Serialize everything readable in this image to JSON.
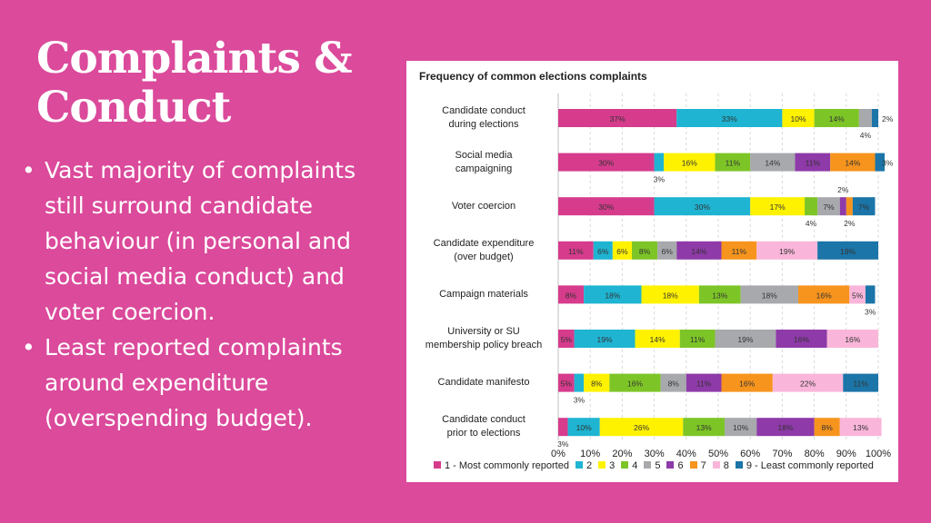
{
  "slide": {
    "title_line1": "Complaints &",
    "title_line2": "Conduct",
    "bullets": [
      {
        "symbol": "•",
        "lines": [
          "Vast majority of complaints",
          "still surround candidate",
          "behaviour (in personal and",
          "social media conduct) and",
          "voter coercion."
        ]
      },
      {
        "symbol": "•",
        "lines": [
          "Least reported complaints",
          "around expenditure",
          "(overspending budget)."
        ]
      }
    ]
  },
  "chart_data": {
    "type": "bar",
    "orientation": "horizontal",
    "stacked": "100%",
    "title": "Frequency of common elections complaints",
    "xlim": [
      0,
      100
    ],
    "xticks": [
      "0%",
      "10%",
      "20%",
      "30%",
      "40%",
      "50%",
      "60%",
      "70%",
      "80%",
      "90%",
      "100%"
    ],
    "grid": true,
    "legend_position": "bottom",
    "series": [
      {
        "name": "1 - Most commonly reported",
        "color": "#D63B8C"
      },
      {
        "name": "2",
        "color": "#1FB4D2"
      },
      {
        "name": "3",
        "color": "#FFF200"
      },
      {
        "name": "4",
        "color": "#7DC527"
      },
      {
        "name": "5",
        "color": "#A7A9AC"
      },
      {
        "name": "6",
        "color": "#8E3AA8"
      },
      {
        "name": "7",
        "color": "#F7941D"
      },
      {
        "name": "8",
        "color": "#F9B6DA"
      },
      {
        "name": "9 - Least commonly reported",
        "color": "#1B75A8"
      }
    ],
    "rows": [
      {
        "label": [
          "Candidate conduct",
          "during elections"
        ],
        "values": [
          37,
          33,
          10,
          14,
          4,
          0,
          0,
          0,
          2
        ],
        "labels": [
          "37%",
          "33%",
          "10%",
          "14%",
          "4%",
          "",
          "",
          "",
          "2%"
        ]
      },
      {
        "label": [
          "Social media",
          "campaigning"
        ],
        "values": [
          30,
          3,
          16,
          11,
          14,
          11,
          14,
          0,
          3
        ],
        "labels": [
          "30%",
          "3%",
          "16%",
          "11%",
          "14%",
          "11%",
          "14%",
          "",
          "3%"
        ]
      },
      {
        "label": [
          "Voter coercion"
        ],
        "values": [
          30,
          30,
          17,
          4,
          7,
          2,
          2,
          0,
          7
        ],
        "labels": [
          "30%",
          "30%",
          "17%",
          "4%",
          "7%",
          "2%",
          "2%",
          "",
          "7%"
        ]
      },
      {
        "label": [
          "Candidate expenditure",
          "(over budget)"
        ],
        "values": [
          11,
          6,
          6,
          8,
          6,
          14,
          11,
          19,
          19
        ],
        "labels": [
          "11%",
          "6%",
          "6%",
          "8%",
          "6%",
          "14%",
          "11%",
          "19%",
          "19%"
        ]
      },
      {
        "label": [
          "Campaign materials"
        ],
        "values": [
          8,
          18,
          18,
          13,
          18,
          0,
          16,
          5,
          3
        ],
        "labels": [
          "8%",
          "18%",
          "18%",
          "13%",
          "18%",
          "",
          "16%",
          "5%",
          "3%"
        ]
      },
      {
        "label": [
          "University or SU",
          "membership policy breach"
        ],
        "values": [
          5,
          19,
          14,
          11,
          19,
          16,
          0,
          16,
          0
        ],
        "labels": [
          "5%",
          "19%",
          "14%",
          "11%",
          "19%",
          "16%",
          "",
          "16%",
          ""
        ]
      },
      {
        "label": [
          "Candidate manifesto"
        ],
        "values": [
          5,
          3,
          8,
          16,
          8,
          11,
          16,
          22,
          11
        ],
        "labels": [
          "5%",
          "3%",
          "8%",
          "16%",
          "8%",
          "11%",
          "16%",
          "22%",
          "11%"
        ]
      },
      {
        "label": [
          "Candidate conduct",
          "prior to elections"
        ],
        "values": [
          3,
          10,
          26,
          13,
          10,
          18,
          8,
          13,
          0
        ],
        "labels": [
          "3%",
          "10%",
          "26%",
          "13%",
          "10%",
          "18%",
          "8%",
          "13%",
          ""
        ]
      }
    ]
  }
}
